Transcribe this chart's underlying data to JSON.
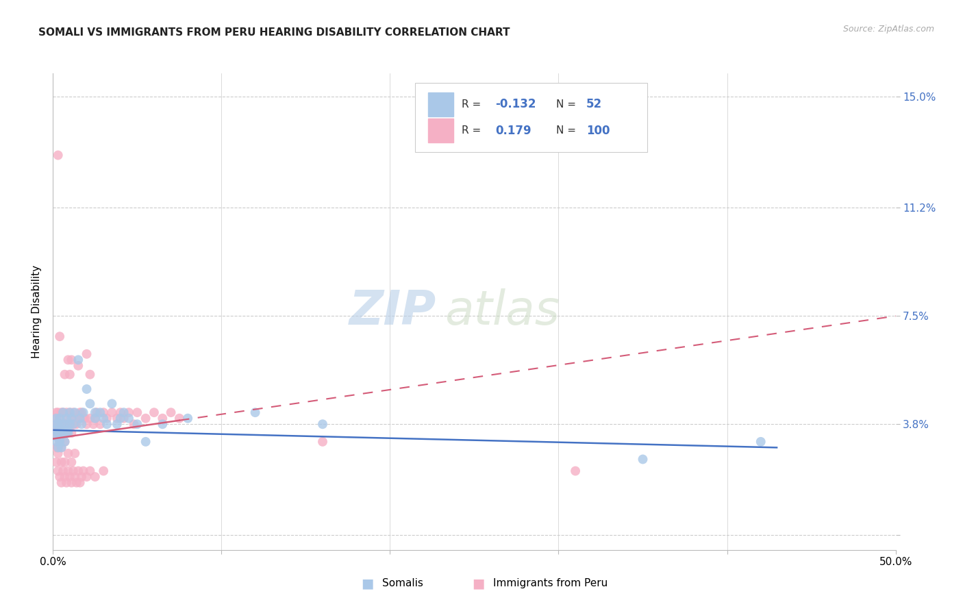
{
  "title": "SOMALI VS IMMIGRANTS FROM PERU HEARING DISABILITY CORRELATION CHART",
  "source": "Source: ZipAtlas.com",
  "ylabel": "Hearing Disability",
  "xlim": [
    0.0,
    0.5
  ],
  "ylim": [
    -0.005,
    0.158
  ],
  "ytick_vals": [
    0.0,
    0.038,
    0.075,
    0.112,
    0.15
  ],
  "ytick_labels": [
    "",
    "3.8%",
    "7.5%",
    "11.2%",
    "15.0%"
  ],
  "xtick_vals": [
    0.0,
    0.1,
    0.2,
    0.3,
    0.4,
    0.5
  ],
  "xtick_labels": [
    "0.0%",
    "",
    "",
    "",
    "",
    "50.0%"
  ],
  "somali_R": -0.132,
  "somali_N": 52,
  "peru_R": 0.179,
  "peru_N": 100,
  "legend_label_blue": "Somalis",
  "legend_label_pink": "Immigrants from Peru",
  "blue_dot_color": "#aac8e8",
  "pink_dot_color": "#f5b0c5",
  "blue_line_color": "#4472c4",
  "pink_line_color": "#d45b78",
  "bg_color": "#ffffff",
  "grid_color": "#cccccc",
  "title_color": "#222222",
  "source_color": "#aaaaaa",
  "ytick_color": "#4472c4",
  "legend_text_color": "#333333",
  "legend_val_color": "#4472c4",
  "blue_trend_x": [
    0.0,
    0.43
  ],
  "blue_trend_y": [
    0.036,
    0.03
  ],
  "pink_trend_x0": 0.0,
  "pink_trend_y0": 0.033,
  "pink_trend_x1": 0.5,
  "pink_trend_y1": 0.075,
  "pink_solid_xend": 0.075,
  "somali_x": [
    0.001,
    0.001,
    0.002,
    0.002,
    0.002,
    0.003,
    0.003,
    0.003,
    0.004,
    0.004,
    0.004,
    0.004,
    0.005,
    0.005,
    0.005,
    0.006,
    0.006,
    0.007,
    0.007,
    0.008,
    0.008,
    0.009,
    0.009,
    0.01,
    0.01,
    0.011,
    0.012,
    0.013,
    0.015,
    0.016,
    0.017,
    0.018,
    0.02,
    0.022,
    0.025,
    0.025,
    0.028,
    0.03,
    0.032,
    0.035,
    0.038,
    0.04,
    0.042,
    0.045,
    0.05,
    0.055,
    0.065,
    0.08,
    0.12,
    0.16,
    0.35,
    0.42
  ],
  "somali_y": [
    0.036,
    0.034,
    0.038,
    0.032,
    0.04,
    0.03,
    0.035,
    0.038,
    0.032,
    0.036,
    0.04,
    0.033,
    0.035,
    0.038,
    0.03,
    0.042,
    0.036,
    0.038,
    0.032,
    0.035,
    0.04,
    0.035,
    0.036,
    0.042,
    0.038,
    0.04,
    0.038,
    0.042,
    0.06,
    0.04,
    0.038,
    0.042,
    0.05,
    0.045,
    0.04,
    0.042,
    0.042,
    0.04,
    0.038,
    0.045,
    0.038,
    0.04,
    0.042,
    0.04,
    0.038,
    0.032,
    0.038,
    0.04,
    0.042,
    0.038,
    0.026,
    0.032
  ],
  "peru_x": [
    0.001,
    0.001,
    0.001,
    0.002,
    0.002,
    0.002,
    0.002,
    0.003,
    0.003,
    0.003,
    0.003,
    0.003,
    0.004,
    0.004,
    0.004,
    0.004,
    0.005,
    0.005,
    0.005,
    0.005,
    0.006,
    0.006,
    0.006,
    0.007,
    0.007,
    0.007,
    0.008,
    0.008,
    0.008,
    0.009,
    0.009,
    0.01,
    0.01,
    0.01,
    0.011,
    0.011,
    0.012,
    0.012,
    0.013,
    0.013,
    0.014,
    0.015,
    0.015,
    0.016,
    0.017,
    0.018,
    0.019,
    0.02,
    0.02,
    0.022,
    0.022,
    0.024,
    0.025,
    0.026,
    0.028,
    0.03,
    0.032,
    0.035,
    0.038,
    0.04,
    0.042,
    0.045,
    0.048,
    0.05,
    0.055,
    0.06,
    0.065,
    0.07,
    0.075,
    0.002,
    0.003,
    0.004,
    0.005,
    0.006,
    0.007,
    0.008,
    0.009,
    0.01,
    0.011,
    0.012,
    0.013,
    0.014,
    0.015,
    0.016,
    0.017,
    0.018,
    0.02,
    0.022,
    0.025,
    0.03,
    0.003,
    0.005,
    0.007,
    0.009,
    0.011,
    0.013,
    0.16,
    0.31,
    0.003,
    0.004
  ],
  "peru_y": [
    0.038,
    0.034,
    0.04,
    0.036,
    0.03,
    0.038,
    0.042,
    0.035,
    0.03,
    0.038,
    0.042,
    0.036,
    0.032,
    0.036,
    0.04,
    0.034,
    0.035,
    0.038,
    0.03,
    0.042,
    0.042,
    0.036,
    0.038,
    0.038,
    0.032,
    0.055,
    0.038,
    0.042,
    0.035,
    0.04,
    0.06,
    0.038,
    0.042,
    0.055,
    0.035,
    0.06,
    0.038,
    0.042,
    0.04,
    0.038,
    0.038,
    0.058,
    0.04,
    0.042,
    0.042,
    0.04,
    0.04,
    0.038,
    0.062,
    0.055,
    0.04,
    0.038,
    0.04,
    0.042,
    0.038,
    0.042,
    0.04,
    0.042,
    0.04,
    0.042,
    0.04,
    0.042,
    0.038,
    0.042,
    0.04,
    0.042,
    0.04,
    0.042,
    0.04,
    0.025,
    0.022,
    0.02,
    0.018,
    0.022,
    0.02,
    0.018,
    0.022,
    0.02,
    0.018,
    0.022,
    0.02,
    0.018,
    0.022,
    0.018,
    0.02,
    0.022,
    0.02,
    0.022,
    0.02,
    0.022,
    0.028,
    0.025,
    0.025,
    0.028,
    0.025,
    0.028,
    0.032,
    0.022,
    0.13,
    0.068
  ]
}
